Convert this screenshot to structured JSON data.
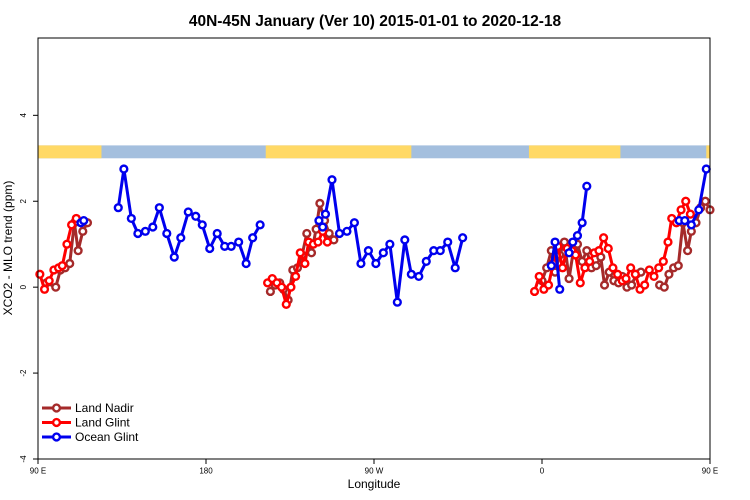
{
  "chart_data": {
    "type": "line",
    "title": "40N-45N January (Ver 10)   2015-01-01 to 2020-12-18",
    "xlabel": "Longitude",
    "ylabel": "XCO2 - MLO trend (ppm)",
    "xlim": [
      90,
      450
    ],
    "ylim": [
      -4,
      5.8
    ],
    "x_ticks": [
      {
        "value": 90,
        "label": "90 E"
      },
      {
        "value": 180,
        "label": "180"
      },
      {
        "value": 270,
        "label": "90 W"
      },
      {
        "value": 360,
        "label": "0"
      },
      {
        "value": 450,
        "label": "90 E"
      },
      {
        "value": 540,
        "label": "180"
      }
    ],
    "y_ticks": [
      -4,
      -2,
      0,
      2,
      4
    ],
    "legend_position": "bottom-left",
    "colors": {
      "land_nadir": "#a52a2a",
      "land_glint": "#ff0000",
      "ocean_glint": "#0000ee",
      "land_band": "#ffd966",
      "ocean_band": "#a4bfde"
    },
    "surface_band": {
      "y_range": [
        3.0,
        3.3
      ],
      "land_segments": [
        [
          90,
          124
        ],
        [
          212,
          290
        ],
        [
          353,
          402
        ],
        [
          448,
          490
        ],
        [
          500,
          514
        ],
        [
          522,
          524
        ]
      ]
    },
    "series": [
      {
        "name": "Land Nadir",
        "segments": [
          {
            "x": [
              94.5,
              99.5,
              102,
              104.5,
              107,
              109.5,
              111.5,
              114,
              116.5
            ],
            "y": [
              0.1,
              0.0,
              0.4,
              0.45,
              0.55,
              1.5,
              0.85,
              1.3,
              1.5
            ]
          },
          {
            "x": [
              214.5,
              217,
              219.5,
              221.5,
              224,
              226.5,
              229,
              231.5,
              234,
              236.5,
              239,
              241,
              243.5,
              246,
              248.5
            ],
            "y": [
              -0.1,
              0.05,
              0.1,
              -0.05,
              -0.3,
              0.4,
              0.45,
              0.75,
              1.25,
              0.8,
              1.35,
              1.95,
              1.55,
              1.25,
              1.1
            ]
          },
          {
            "x": [
              360,
              362.5,
              365,
              367,
              369.5,
              372,
              374.5,
              377,
              379,
              381.5,
              384,
              386.5,
              389,
              391.5,
              393.5,
              396,
              398.5,
              401,
              403,
              405.5,
              408,
              410.5,
              413
            ],
            "y": [
              0.15,
              0.45,
              0.85,
              0.35,
              0.75,
              1.05,
              0.2,
              0.9,
              1.0,
              0.6,
              0.85,
              0.45,
              0.5,
              0.7,
              0.05,
              0.35,
              0.15,
              0.1,
              0.25,
              0.0,
              0.05,
              0.3,
              0.35
            ]
          },
          {
            "x": [
              423,
              425.5,
              428,
              430.5,
              433,
              435.5,
              438,
              440,
              442.5,
              445,
              447.5,
              450
            ],
            "y": [
              0.05,
              0.0,
              0.3,
              0.45,
              0.5,
              1.5,
              0.85,
              1.3,
              1.5,
              1.85,
              2.0,
              1.8
            ]
          }
        ]
      },
      {
        "name": "Land Glint",
        "segments": [
          {
            "x": [
              91,
              93.5,
              96,
              98.5,
              101,
              103,
              105.5,
              108,
              110.5,
              113
            ],
            "y": [
              0.3,
              -0.05,
              0.15,
              0.4,
              0.45,
              0.5,
              1.0,
              1.45,
              1.6,
              1.5
            ]
          },
          {
            "x": [
              213,
              215.5,
              218,
              220.5,
              223,
              225.5,
              228,
              230.5,
              233,
              235,
              237.5,
              240,
              242.5,
              245
            ],
            "y": [
              0.1,
              0.2,
              0.1,
              0.0,
              -0.4,
              0.0,
              0.25,
              0.8,
              0.55,
              1.05,
              1.0,
              1.05,
              1.3,
              1.05
            ]
          },
          {
            "x": [
              356,
              358.5,
              361,
              363.5,
              366,
              368.5,
              371,
              373.5,
              376,
              378,
              380.5,
              383,
              385.5,
              388,
              390.5,
              393,
              395.5,
              398,
              400.5,
              403,
              405,
              407.5,
              410,
              412.5,
              415,
              417.5,
              420,
              422.5,
              425,
              427.5,
              429.5,
              432,
              434.5,
              437,
              439.5
            ],
            "y": [
              -0.1,
              0.25,
              -0.05,
              0.05,
              0.55,
              0.95,
              0.45,
              0.9,
              0.85,
              0.75,
              0.1,
              0.45,
              0.6,
              0.8,
              0.85,
              1.15,
              0.9,
              0.45,
              0.3,
              0.15,
              0.2,
              0.45,
              0.3,
              -0.05,
              0.05,
              0.4,
              0.25,
              0.45,
              0.6,
              1.05,
              1.6,
              1.5,
              1.8,
              2.0,
              1.7
            ]
          }
        ]
      },
      {
        "name": "Ocean Glint",
        "segments": [
          {
            "x": [
              113,
              114.5
            ],
            "y": [
              1.5,
              1.55
            ]
          },
          {
            "x": [
              133,
              136,
              140,
              143.5,
              147.5,
              151.5,
              155,
              159,
              163,
              166.5,
              170.5,
              174.5,
              178,
              182,
              186,
              190,
              193.5,
              197.5,
              201.5,
              205,
              209
            ],
            "y": [
              1.85,
              2.75,
              1.6,
              1.25,
              1.3,
              1.4,
              1.85,
              1.25,
              0.7,
              1.15,
              1.75,
              1.65,
              1.45,
              0.9,
              1.25,
              0.95,
              0.95,
              1.05,
              0.55,
              1.15,
              1.45
            ]
          },
          {
            "x": [
              240.5,
              242.5
            ],
            "y": [
              1.55,
              1.4
            ]
          },
          {
            "x": [
              244,
              247.5,
              251.5,
              255.5,
              259.5,
              263,
              267,
              271,
              275,
              278.5,
              282.5,
              286.5,
              290,
              294,
              298,
              302,
              305.5,
              309.5,
              313.5,
              317.5
            ],
            "y": [
              1.7,
              2.5,
              1.25,
              1.3,
              1.5,
              0.55,
              0.85,
              0.55,
              0.8,
              1.0,
              -0.35,
              1.1,
              0.3,
              0.25,
              0.6,
              0.85,
              0.85,
              1.05,
              0.45,
              1.15
            ]
          },
          {
            "x": [
              365,
              367,
              369.5
            ],
            "y": [
              0.5,
              1.05,
              -0.05
            ]
          },
          {
            "x": [
              374.5,
              376.5,
              379,
              381.5,
              384
            ],
            "y": [
              0.8,
              1.05,
              1.2,
              1.5,
              2.35
            ]
          },
          {
            "x": [
              433.5,
              436.5,
              440,
              444,
              448
            ],
            "y": [
              1.55,
              1.55,
              1.45,
              1.8,
              2.75
            ]
          }
        ]
      }
    ]
  }
}
